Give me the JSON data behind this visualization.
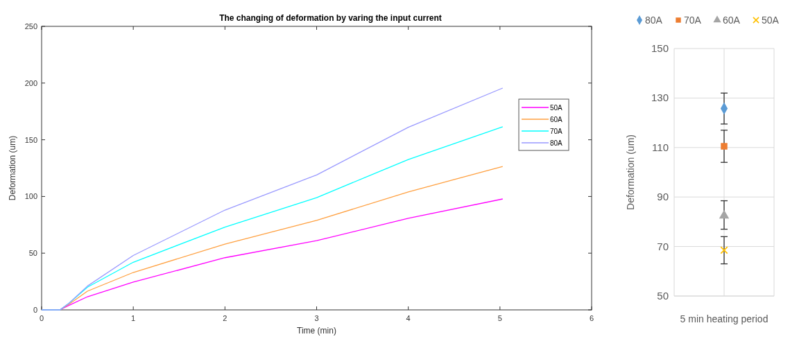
{
  "chart_data": [
    {
      "type": "line",
      "title": "The changing of deformation by varing the input current",
      "xlabel": "Time (min)",
      "ylabel": "Deformation (um)",
      "xlim": [
        0,
        6
      ],
      "xticks": [
        0,
        1,
        2,
        3,
        4,
        5,
        6
      ],
      "ylim": [
        0,
        250
      ],
      "yticks": [
        0,
        50,
        100,
        150,
        200,
        250
      ],
      "grid": false,
      "legend": "right",
      "marker": "none",
      "line_style": "solid",
      "x": [
        0,
        0.2,
        0.3,
        0.5,
        1,
        2,
        3,
        4,
        5.03
      ],
      "series": [
        {
          "name": "50A",
          "color": "#ff00ff",
          "values": [
            0,
            0,
            4,
            11.6,
            24.5,
            46,
            61,
            80.7,
            97.8
          ]
        },
        {
          "name": "60A",
          "color": "#ffa040",
          "values": [
            0,
            0,
            5,
            16.5,
            33,
            58,
            79,
            104,
            126.5
          ]
        },
        {
          "name": "70A",
          "color": "#00ffff",
          "values": [
            0,
            0,
            6,
            20,
            42,
            73,
            99,
            132.6,
            161.4
          ]
        },
        {
          "name": "80A",
          "color": "#9999ff",
          "values": [
            0,
            0,
            6,
            21,
            48,
            88,
            119,
            161,
            195.6
          ]
        }
      ]
    },
    {
      "type": "scatter",
      "ylabel": "Deformation (um)",
      "categories": [
        "5 min heating period"
      ],
      "ylim": [
        50,
        150
      ],
      "yticks": [
        50,
        70,
        90,
        110,
        130,
        150
      ],
      "grid": true,
      "legend": "top",
      "series": [
        {
          "name": "80A",
          "color": "#5b9bd5",
          "marker": "diamond",
          "values": [
            125.8
          ],
          "errors": [
            [
              119.5,
              132
            ]
          ]
        },
        {
          "name": "70A",
          "color": "#ed7d31",
          "marker": "square",
          "values": [
            110.5
          ],
          "errors": [
            [
              104,
              117
            ]
          ]
        },
        {
          "name": "60A",
          "color": "#a5a5a5",
          "marker": "triangle",
          "values": [
            82.5
          ],
          "errors": [
            [
              77,
              88.5
            ]
          ]
        },
        {
          "name": "50A",
          "color": "#ffc000",
          "marker": "cross",
          "values": [
            68.5
          ],
          "errors": [
            [
              63,
              74
            ]
          ]
        }
      ]
    }
  ]
}
